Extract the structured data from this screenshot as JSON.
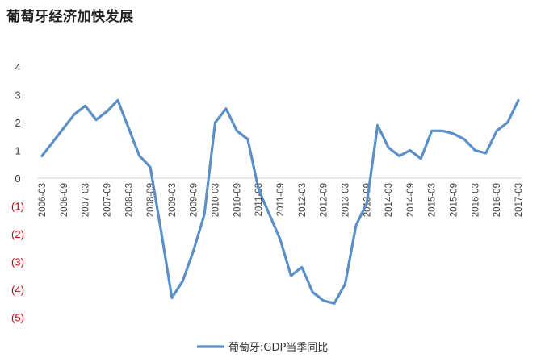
{
  "chart_data": {
    "type": "line",
    "title": "葡萄牙经济加快发展",
    "xlabel": "",
    "ylabel": "",
    "ylim": [
      -5,
      4
    ],
    "grid": false,
    "legend_position": "bottom",
    "y_ticks": [
      {
        "value": 4,
        "label": "4",
        "color": "#404040"
      },
      {
        "value": 3,
        "label": "3",
        "color": "#404040"
      },
      {
        "value": 2,
        "label": "2",
        "color": "#404040"
      },
      {
        "value": 1,
        "label": "1",
        "color": "#404040"
      },
      {
        "value": 0,
        "label": "0",
        "color": "#404040"
      },
      {
        "value": -1,
        "label": "(1)",
        "color": "#c00000"
      },
      {
        "value": -2,
        "label": "(2)",
        "color": "#c00000"
      },
      {
        "value": -3,
        "label": "(3)",
        "color": "#c00000"
      },
      {
        "value": -4,
        "label": "(4)",
        "color": "#c00000"
      },
      {
        "value": -5,
        "label": "(5)",
        "color": "#c00000"
      }
    ],
    "x_tick_labels": [
      "2006-03",
      "2006-09",
      "2007-03",
      "2007-09",
      "2008-03",
      "2008-09",
      "2009-03",
      "2009-09",
      "2010-03",
      "2010-09",
      "2011-03",
      "2011-09",
      "2012-03",
      "2012-09",
      "2013-03",
      "2013-09",
      "2014-03",
      "2014-09",
      "2015-03",
      "2015-09",
      "2016-03",
      "2016-09",
      "2017-03"
    ],
    "x": [
      "2006-03",
      "2006-06",
      "2006-09",
      "2006-12",
      "2007-03",
      "2007-06",
      "2007-09",
      "2007-12",
      "2008-03",
      "2008-06",
      "2008-09",
      "2008-12",
      "2009-03",
      "2009-06",
      "2009-09",
      "2009-12",
      "2010-03",
      "2010-06",
      "2010-09",
      "2010-12",
      "2011-03",
      "2011-06",
      "2011-09",
      "2011-12",
      "2012-03",
      "2012-06",
      "2012-09",
      "2012-12",
      "2013-03",
      "2013-06",
      "2013-09",
      "2013-12",
      "2014-03",
      "2014-06",
      "2014-09",
      "2014-12",
      "2015-03",
      "2015-06",
      "2015-09",
      "2015-12",
      "2016-03",
      "2016-06",
      "2016-09",
      "2016-12",
      "2017-03"
    ],
    "series": [
      {
        "name": "葡萄牙:GDP当季同比",
        "color": "#5b8fc7",
        "values": [
          0.8,
          1.3,
          1.8,
          2.3,
          2.6,
          2.1,
          2.4,
          2.8,
          1.8,
          0.8,
          0.4,
          -1.9,
          -4.3,
          -3.7,
          -2.6,
          -1.3,
          2.0,
          2.5,
          1.7,
          1.4,
          -0.4,
          -1.3,
          -2.2,
          -3.5,
          -3.2,
          -4.1,
          -4.4,
          -4.5,
          -3.8,
          -1.7,
          -0.9,
          1.9,
          1.1,
          0.8,
          1.0,
          0.7,
          1.7,
          1.7,
          1.6,
          1.4,
          1.0,
          0.9,
          1.7,
          2.0,
          2.8
        ]
      }
    ]
  }
}
